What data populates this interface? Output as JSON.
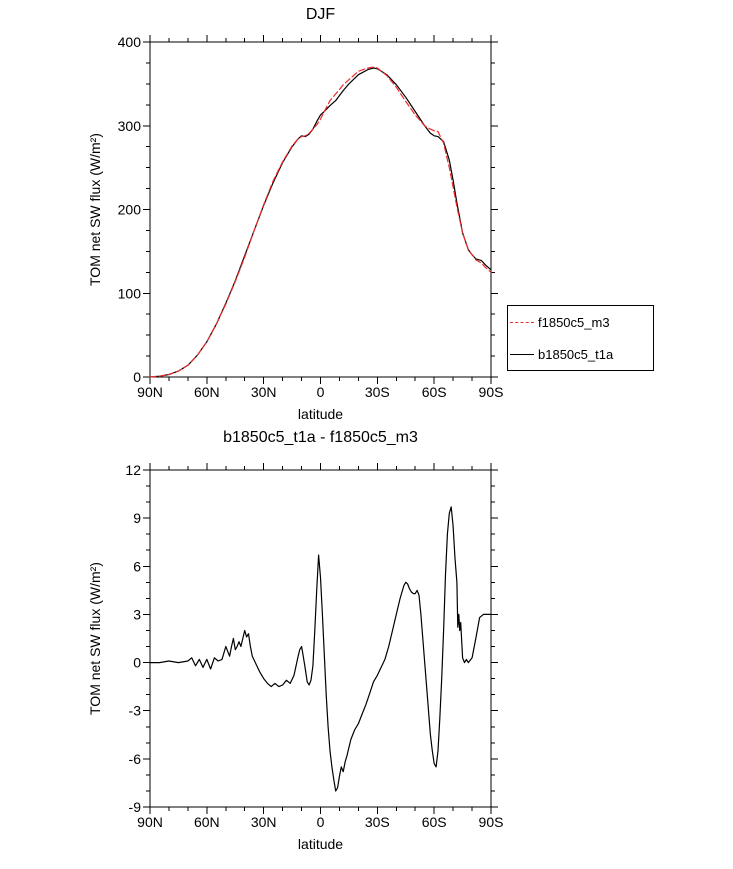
{
  "page": {
    "background": "#ffffff"
  },
  "chart_data": [
    {
      "id": "top",
      "type": "line",
      "title": "DJF",
      "xlabel": "latitude",
      "ylabel": "TOM net SW flux (W/m²)",
      "xlim": [
        90,
        -90
      ],
      "ylim": [
        0,
        400
      ],
      "xtick_values": [
        90,
        60,
        30,
        0,
        -30,
        -60,
        -90
      ],
      "xtick_labels": [
        "90N",
        "60N",
        "30N",
        "0",
        "30S",
        "60S",
        "90S"
      ],
      "ytick_values": [
        0,
        100,
        200,
        300,
        400
      ],
      "ytick_labels": [
        "0",
        "100",
        "200",
        "300",
        "400"
      ],
      "x_minor_step": 10,
      "y_minor_step": 25,
      "grid": false,
      "legend": {
        "position": "right-middle"
      },
      "x": [
        90,
        85,
        80,
        75,
        70,
        65,
        60,
        55,
        50,
        45,
        40,
        35,
        30,
        25,
        20,
        15,
        12,
        10,
        8,
        6,
        4,
        2,
        0,
        -2,
        -5,
        -8,
        -10,
        -12,
        -15,
        -20,
        -25,
        -28,
        -30,
        -35,
        -40,
        -45,
        -50,
        -55,
        -58,
        -60,
        -62,
        -65,
        -68,
        -70,
        -72,
        -75,
        -78,
        -80,
        -82,
        -85,
        -87,
        -90
      ],
      "series": [
        {
          "name": "f1850c5_m3",
          "color": "#ed2b2b",
          "dash": "6,3",
          "values": [
            0,
            1,
            3,
            7,
            14,
            26,
            42,
            63,
            87,
            114,
            143,
            175,
            206,
            234,
            257,
            276,
            284,
            287,
            288,
            291,
            296,
            301,
            308,
            317,
            330,
            338,
            343,
            349,
            355,
            365,
            369,
            370,
            369,
            360,
            346,
            329,
            313,
            300,
            296,
            294,
            293,
            279,
            250,
            227,
            203,
            172,
            152,
            146,
            140,
            136,
            131,
            125
          ]
        },
        {
          "name": "b1850c5_t1a",
          "color": "#000000",
          "dash": "",
          "values": [
            0,
            1,
            3,
            7,
            14,
            26,
            42,
            63,
            88,
            115,
            145,
            175,
            205,
            232,
            256,
            275,
            284,
            288,
            287,
            290,
            296,
            305,
            313,
            317,
            324,
            330,
            336,
            342,
            350,
            361,
            367,
            369,
            368,
            361,
            349,
            334,
            317,
            300,
            291,
            288,
            287,
            281,
            259,
            235,
            208,
            172,
            152,
            146,
            141,
            139,
            134,
            128
          ]
        }
      ]
    },
    {
      "id": "bottom",
      "type": "line",
      "title": "b1850c5_t1a - f1850c5_m3",
      "xlabel": "latitude",
      "ylabel": "TOM net SW flux (W/m²)",
      "xlim": [
        90,
        -90
      ],
      "ylim": [
        -9,
        12
      ],
      "xtick_values": [
        90,
        60,
        30,
        0,
        -30,
        -60,
        -90
      ],
      "xtick_labels": [
        "90N",
        "60N",
        "30N",
        "0",
        "30S",
        "60S",
        "90S"
      ],
      "ytick_values": [
        -9,
        -6,
        -3,
        0,
        3,
        6,
        9,
        12
      ],
      "ytick_labels": [
        "-9",
        "-6",
        "-3",
        "0",
        "3",
        "6",
        "9",
        "12"
      ],
      "x_minor_step": 10,
      "y_minor_step": 1,
      "grid": false,
      "x": [
        90,
        85,
        80,
        75,
        70,
        68,
        66,
        64,
        62,
        60,
        58,
        56,
        54,
        52,
        50,
        48,
        47,
        46,
        45,
        44,
        43,
        42,
        41,
        40,
        39,
        38,
        37,
        36,
        34,
        32,
        30,
        28,
        26,
        24,
        22,
        20,
        18,
        16,
        14,
        12,
        11,
        10,
        9,
        8,
        7,
        6,
        5,
        4,
        3,
        2,
        1,
        0,
        -1,
        -2,
        -3,
        -4,
        -5,
        -6,
        -7,
        -8,
        -9,
        -10,
        -11,
        -12,
        -13,
        -14,
        -15,
        -16,
        -18,
        -20,
        -22,
        -24,
        -26,
        -28,
        -30,
        -32,
        -34,
        -36,
        -38,
        -40,
        -42,
        -44,
        -45,
        -46,
        -47,
        -48,
        -49,
        -50,
        -51,
        -52,
        -53,
        -54,
        -55,
        -56,
        -57,
        -58,
        -59,
        -60,
        -61,
        -62,
        -63,
        -64,
        -65,
        -66,
        -67,
        -68,
        -69,
        -70,
        -71,
        -72,
        -72.5,
        -73,
        -73.5,
        -74,
        -75,
        -76,
        -77,
        -78,
        -80,
        -82,
        -84,
        -86,
        -88,
        -90
      ],
      "series": [
        {
          "name": "b1850c5_t1a - f1850c5_m3",
          "color": "#000000",
          "dash": "",
          "values": [
            0,
            0,
            0.1,
            0,
            0.1,
            0.3,
            -0.2,
            0.2,
            -0.3,
            0.2,
            -0.4,
            0.3,
            0.1,
            0.2,
            1.0,
            0.4,
            1.0,
            1.5,
            0.8,
            1.0,
            1.3,
            1.0,
            1.5,
            2.0,
            1.6,
            1.8,
            1.0,
            0.4,
            -0.1,
            -0.6,
            -1.0,
            -1.3,
            -1.5,
            -1.3,
            -1.5,
            -1.4,
            -1.1,
            -1.3,
            -0.8,
            0.3,
            0.8,
            1.0,
            0.3,
            -0.4,
            -1.2,
            -1.4,
            -1.1,
            -0.2,
            2.0,
            4.5,
            6.7,
            5.3,
            3.0,
            0.5,
            -2.0,
            -4.0,
            -5.5,
            -6.5,
            -7.3,
            -8.0,
            -7.8,
            -7.1,
            -6.5,
            -6.8,
            -6.2,
            -5.8,
            -5.3,
            -4.8,
            -4.2,
            -3.8,
            -3.2,
            -2.6,
            -1.9,
            -1.2,
            -0.8,
            -0.3,
            0.2,
            1.0,
            2.0,
            3.0,
            4.0,
            4.8,
            5.0,
            4.9,
            4.6,
            4.4,
            4.3,
            4.3,
            4.5,
            4.2,
            3.0,
            1.5,
            0.0,
            -1.5,
            -3.0,
            -4.5,
            -5.5,
            -6.3,
            -6.5,
            -5.5,
            -3.5,
            -1.0,
            2.0,
            5.5,
            8.0,
            9.3,
            9.7,
            8.5,
            6.5,
            5.0,
            2.2,
            3.0,
            2.0,
            2.5,
            0.3,
            0.0,
            0.2,
            0.0,
            0.3,
            1.5,
            2.8,
            3.0,
            3.0,
            3.0
          ]
        }
      ]
    }
  ]
}
